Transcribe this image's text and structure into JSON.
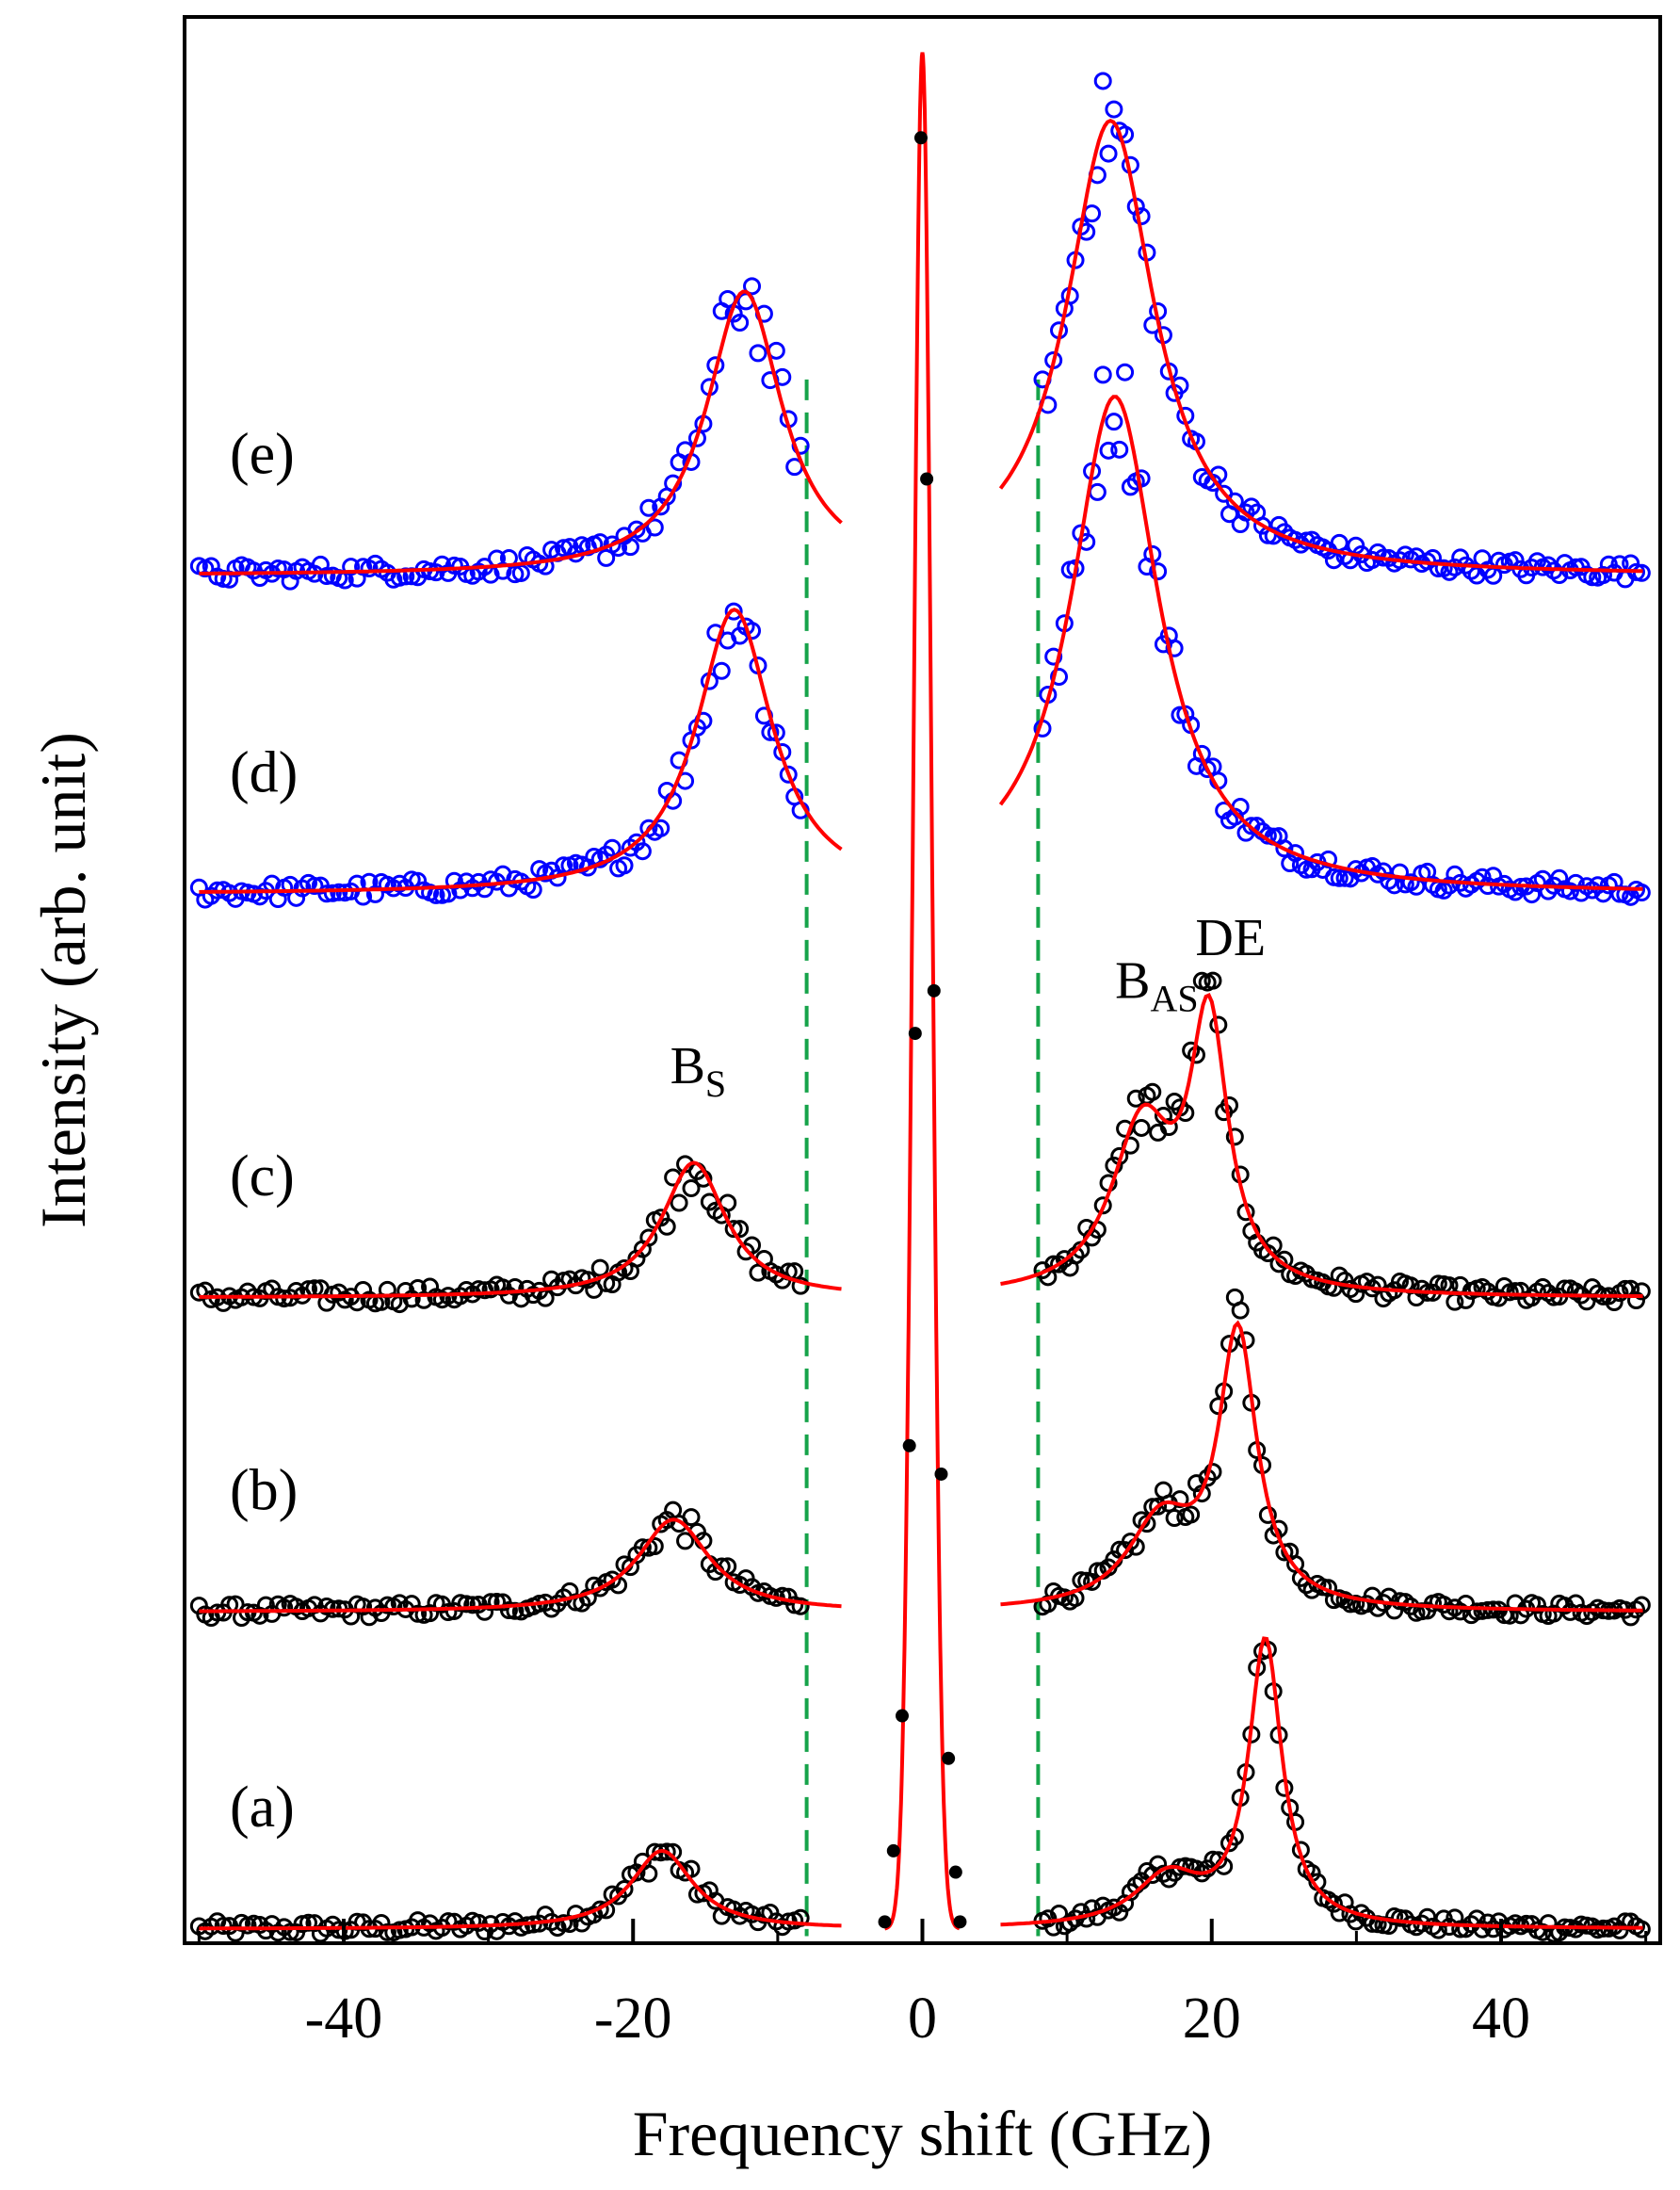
{
  "chart_data": {
    "type": "line",
    "title": "",
    "xlabel": "Frequency shift (GHz)",
    "ylabel": "Intensity (arb. unit)",
    "xlim": [
      -51,
      51
    ],
    "ylim": [
      -0.1,
      13.45
    ],
    "xticks": [
      -40,
      -20,
      0,
      20,
      40
    ],
    "tick_labels": [
      "-40",
      "-20",
      "0",
      "20",
      "40"
    ],
    "grid": false,
    "colors": {
      "data_black": "#000000",
      "data_blue": "#0000ff",
      "fit": "#ff0000",
      "dashed": "#16a34a",
      "axis": "#000000"
    },
    "dashed_lines_x": [
      -8,
      8
    ],
    "central_peak": {
      "name": "Rayleigh peak",
      "center": 0,
      "width": 0.9,
      "height": 13.2,
      "points_x": [
        -2.6,
        -2.0,
        -1.4,
        -0.9,
        -0.5,
        -0.1,
        0.3,
        0.8,
        1.3,
        1.8,
        2.3,
        2.6
      ],
      "points_y": [
        0.05,
        0.55,
        1.5,
        3.4,
        6.3,
        12.6,
        10.2,
        6.6,
        3.2,
        1.2,
        0.4,
        0.05
      ]
    },
    "annotations": [
      {
        "main": "B",
        "sub": "S",
        "x": -15.5,
        "y": 5.95
      },
      {
        "main": "B",
        "sub": "AS",
        "x": 16.2,
        "y": 6.55
      },
      {
        "main": "DE",
        "sub": "",
        "x": 21.3,
        "y": 6.85
      }
    ],
    "series": [
      {
        "name": "(a)",
        "label": "(a)",
        "color": "#000000",
        "offset": 0.0,
        "noise": 0.05,
        "left": [
          {
            "c": -18.0,
            "w": 2.6,
            "a": 0.55
          }
        ],
        "right": [
          {
            "c": 23.7,
            "w": 1.4,
            "a": 2.0
          },
          {
            "c": 17.0,
            "w": 2.8,
            "a": 0.35
          }
        ]
      },
      {
        "name": "(b)",
        "label": "(b)",
        "color": "#000000",
        "offset": 2.23,
        "noise": 0.05,
        "left": [
          {
            "c": -17.2,
            "w": 3.0,
            "a": 0.65
          }
        ],
        "right": [
          {
            "c": 21.8,
            "w": 1.6,
            "a": 1.9
          },
          {
            "c": 16.5,
            "w": 2.8,
            "a": 0.6
          }
        ]
      },
      {
        "name": "(c)",
        "label": "(c)",
        "color": "#000000",
        "offset": 4.44,
        "noise": 0.06,
        "left": [
          {
            "c": -15.8,
            "w": 2.7,
            "a": 0.95
          }
        ],
        "right": [
          {
            "c": 19.8,
            "w": 1.6,
            "a": 1.85
          },
          {
            "c": 15.2,
            "w": 2.6,
            "a": 1.15
          }
        ]
      },
      {
        "name": "(d)",
        "label": "(d)",
        "color": "#0000ff",
        "offset": 7.28,
        "noise": 0.06,
        "left": [
          {
            "c": -13.0,
            "w": 3.2,
            "a": 2.0
          }
        ],
        "right": [
          {
            "c": 13.3,
            "w": 3.7,
            "a": 3.5
          }
        ]
      },
      {
        "name": "(e)",
        "label": "(e)",
        "color": "#0000ff",
        "offset": 9.52,
        "noise": 0.06,
        "left": [
          {
            "c": -12.3,
            "w": 3.2,
            "a": 2.0
          }
        ],
        "right": [
          {
            "c": 13.0,
            "w": 3.7,
            "a": 3.2
          }
        ]
      }
    ]
  }
}
